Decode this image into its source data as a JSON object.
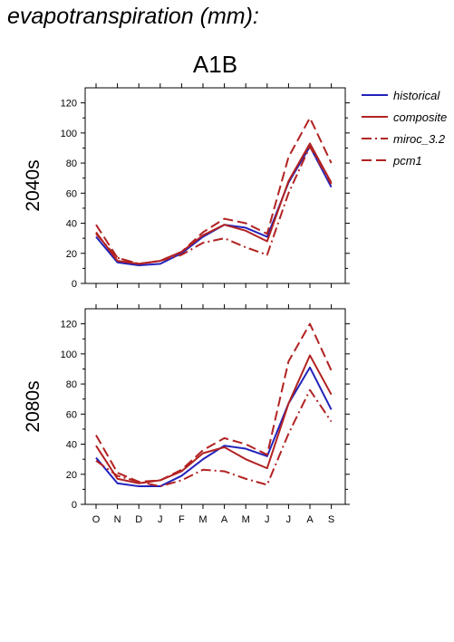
{
  "header": {
    "figure_title": "evapotranspiration (mm):",
    "scenario": "A1B"
  },
  "colors": {
    "historical": "#2222bb",
    "models": "#b22222"
  },
  "chart_data": [
    {
      "type": "line",
      "row_label": "2040s",
      "categories": [
        "O",
        "N",
        "D",
        "J",
        "F",
        "M",
        "A",
        "M",
        "J",
        "J",
        "A",
        "S"
      ],
      "ylim": [
        0,
        130
      ],
      "yticks": [
        0,
        20,
        40,
        60,
        80,
        100,
        120
      ],
      "series": [
        {
          "name": "historical",
          "style": "solid",
          "color": "#2222bb",
          "values": [
            31,
            14,
            12,
            13,
            20,
            31,
            39,
            37,
            31,
            67,
            91,
            64
          ]
        },
        {
          "name": "composite",
          "style": "solid",
          "color": "#b22222",
          "values": [
            34,
            15,
            13,
            15,
            21,
            32,
            39,
            35,
            28,
            68,
            93,
            67
          ]
        },
        {
          "name": "miroc_3.2",
          "style": "dashdot",
          "color": "#b22222",
          "values": [
            33,
            17,
            13,
            15,
            19,
            27,
            30,
            24,
            19,
            60,
            91,
            66
          ]
        },
        {
          "name": "pcm1",
          "style": "dashed",
          "color": "#b22222",
          "values": [
            39,
            17,
            13,
            15,
            21,
            34,
            43,
            40,
            33,
            84,
            110,
            80
          ]
        }
      ]
    },
    {
      "type": "line",
      "row_label": "2080s",
      "categories": [
        "O",
        "N",
        "D",
        "J",
        "F",
        "M",
        "A",
        "M",
        "J",
        "J",
        "A",
        "S"
      ],
      "ylim": [
        0,
        130
      ],
      "yticks": [
        0,
        20,
        40,
        60,
        80,
        100,
        120
      ],
      "series": [
        {
          "name": "historical",
          "style": "solid",
          "color": "#2222bb",
          "values": [
            31,
            14,
            12,
            12,
            19,
            30,
            39,
            37,
            32,
            67,
            91,
            63
          ]
        },
        {
          "name": "composite",
          "style": "solid",
          "color": "#b22222",
          "values": [
            39,
            17,
            14,
            16,
            22,
            34,
            38,
            30,
            24,
            67,
            99,
            73
          ]
        },
        {
          "name": "miroc_3.2",
          "style": "dashdot",
          "color": "#b22222",
          "values": [
            29,
            19,
            15,
            12,
            16,
            23,
            22,
            17,
            13,
            47,
            76,
            55
          ]
        },
        {
          "name": "pcm1",
          "style": "dashed",
          "color": "#b22222",
          "values": [
            46,
            21,
            15,
            16,
            23,
            36,
            44,
            40,
            33,
            95,
            120,
            89
          ]
        }
      ]
    }
  ],
  "legend": [
    {
      "label": "historical",
      "style": "solid",
      "color": "#2222bb"
    },
    {
      "label": "composite",
      "style": "solid",
      "color": "#b22222"
    },
    {
      "label": "miroc_3.2",
      "style": "dashdot",
      "color": "#b22222"
    },
    {
      "label": "pcm1",
      "style": "dashed",
      "color": "#b22222"
    }
  ]
}
